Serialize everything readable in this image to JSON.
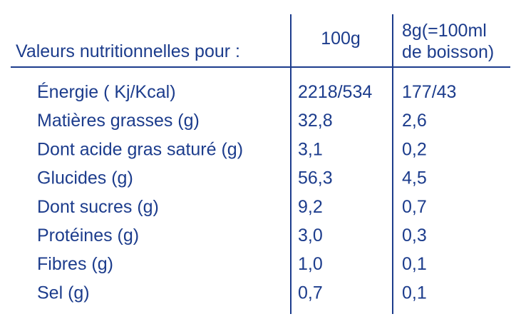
{
  "table": {
    "header": {
      "label": "Valeurs nutritionnelles pour :",
      "col1": "100g",
      "col2": [
        "8g(=100ml",
        "de boisson)"
      ]
    },
    "rows": [
      [
        "Énergie ( Kj/Kcal)",
        "2218/534",
        "177/43"
      ],
      [
        "Matières grasses (g)",
        "32,8",
        "2,6"
      ],
      [
        "Dont acide gras saturé (g)",
        "3,1",
        "0,2"
      ],
      [
        "Glucides (g)",
        "56,3",
        "4,5"
      ],
      [
        "Dont sucres (g)",
        "9,2",
        "0,7"
      ],
      [
        "Protéines (g)",
        "3,0",
        "0,3"
      ],
      [
        "Fibres (g)",
        "1,0",
        "0,1"
      ],
      [
        "Sel (g)",
        "0,7",
        "0,1"
      ]
    ]
  }
}
